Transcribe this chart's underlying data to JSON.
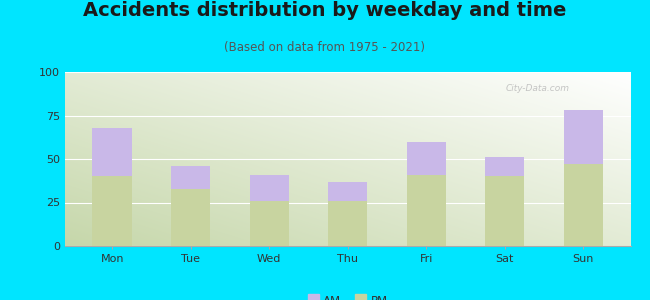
{
  "title": "Accidents distribution by weekday and time",
  "subtitle": "(Based on data from 1975 - 2021)",
  "categories": [
    "Mon",
    "Tue",
    "Wed",
    "Thu",
    "Fri",
    "Sat",
    "Sun"
  ],
  "pm_values": [
    40,
    33,
    26,
    26,
    41,
    40,
    47
  ],
  "am_values": [
    28,
    13,
    15,
    11,
    19,
    11,
    31
  ],
  "am_color": "#c9b8e8",
  "pm_color": "#c8d4a0",
  "background_outer": "#00e5ff",
  "ylim": [
    0,
    100
  ],
  "yticks": [
    0,
    25,
    50,
    75,
    100
  ],
  "bar_width": 0.5,
  "title_fontsize": 14,
  "subtitle_fontsize": 8.5,
  "tick_fontsize": 8,
  "legend_fontsize": 8.5,
  "watermark": "City-Data.com"
}
